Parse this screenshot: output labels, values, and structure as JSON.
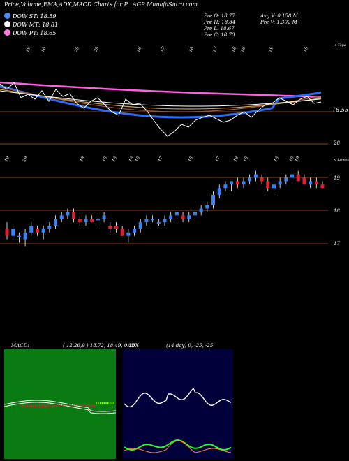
{
  "header": {
    "title_left": "Price,Volume,EMA,ADX,MACD Charts for P",
    "title_right": "AGP MunafaSutra.com",
    "dow": [
      {
        "label": "DOW ST: 18.59",
        "color": "#4f8cf7"
      },
      {
        "label": "DOW MT: 18.81",
        "color": "#ffffff"
      },
      {
        "label": "DOW PT: 18.65",
        "color": "#ff7ae0"
      }
    ],
    "stats_left": [
      "Pre   O: 18.77",
      "Pre   H: 18.84",
      "Pre   L: 18.67",
      "Pre   C: 18.70"
    ],
    "stats_right": [
      "Avg V: 0.158   M",
      "Pre   V: 1.302   M"
    ]
  },
  "panel1": {
    "top_label": "< Topa",
    "price_labels": [
      "18.55",
      "20"
    ],
    "date_labels": [
      "19",
      "16",
      "29",
      "29",
      "18",
      "17",
      "18",
      "17",
      "18",
      "18",
      "19",
      "19"
    ]
  },
  "panel2": {
    "top_label": "< Lowes",
    "price_labels": [
      "19",
      "18",
      "17"
    ],
    "date_labels": [
      "19",
      "29",
      "18",
      "18",
      "16",
      "16",
      "18",
      "17",
      "18",
      "17",
      "18",
      "18",
      "16",
      "19",
      "19"
    ]
  },
  "macd": {
    "label": "MACD:",
    "values": "( 12,26,9 ) 18.72,  18.49,  0.23"
  },
  "adx": {
    "label": "ADX",
    "values": "(14  day) 0,  -25,  -25"
  },
  "chart_data": {
    "type": "candlestick",
    "ohlc": [
      [
        17.5,
        17.7,
        17.2,
        17.3
      ],
      [
        17.3,
        17.6,
        17.2,
        17.5
      ],
      [
        17.3,
        17.4,
        17.1,
        17.3
      ],
      [
        17.2,
        17.5,
        17.0,
        17.4
      ],
      [
        17.4,
        17.7,
        17.3,
        17.6
      ],
      [
        17.5,
        17.6,
        17.3,
        17.4
      ],
      [
        17.4,
        17.6,
        17.2,
        17.5
      ],
      [
        17.5,
        17.7,
        17.4,
        17.6
      ],
      [
        17.6,
        17.9,
        17.5,
        17.8
      ],
      [
        17.8,
        18.0,
        17.7,
        17.9
      ],
      [
        17.9,
        18.1,
        17.8,
        18.0
      ],
      [
        18.0,
        18.1,
        17.7,
        17.8
      ],
      [
        17.8,
        17.9,
        17.6,
        17.7
      ],
      [
        17.7,
        17.9,
        17.6,
        17.8
      ],
      [
        17.8,
        17.9,
        17.7,
        17.7
      ],
      [
        17.8,
        17.9,
        17.6,
        17.8
      ],
      [
        17.8,
        18.0,
        17.7,
        17.9
      ],
      [
        17.6,
        17.7,
        17.4,
        17.5
      ],
      [
        17.6,
        17.7,
        17.4,
        17.5
      ],
      [
        17.5,
        17.6,
        17.3,
        17.3
      ],
      [
        17.3,
        17.5,
        17.1,
        17.4
      ],
      [
        17.4,
        17.6,
        17.3,
        17.5
      ],
      [
        17.5,
        17.8,
        17.4,
        17.7
      ],
      [
        17.7,
        17.9,
        17.6,
        17.8
      ],
      [
        17.8,
        17.9,
        17.7,
        17.8
      ],
      [
        17.7,
        17.8,
        17.6,
        17.7
      ],
      [
        17.7,
        17.9,
        17.6,
        17.8
      ],
      [
        17.8,
        18.0,
        17.7,
        17.9
      ],
      [
        17.9,
        18.1,
        17.8,
        18.0
      ],
      [
        17.9,
        18.0,
        17.7,
        17.8
      ],
      [
        17.8,
        18.0,
        17.7,
        17.9
      ],
      [
        17.9,
        18.1,
        17.8,
        18.0
      ],
      [
        18.0,
        18.2,
        17.9,
        18.1
      ],
      [
        18.1,
        18.3,
        18.0,
        18.2
      ],
      [
        18.2,
        18.6,
        18.1,
        18.5
      ],
      [
        18.5,
        18.8,
        18.4,
        18.7
      ],
      [
        18.7,
        18.9,
        18.6,
        18.8
      ],
      [
        18.8,
        18.9,
        18.6,
        18.9
      ],
      [
        18.9,
        19.0,
        18.7,
        18.8
      ],
      [
        18.8,
        19.0,
        18.7,
        18.9
      ],
      [
        18.9,
        19.1,
        18.8,
        19.0
      ],
      [
        19.0,
        19.2,
        18.9,
        19.1
      ],
      [
        19.0,
        19.1,
        18.8,
        18.9
      ],
      [
        18.9,
        19.0,
        18.6,
        18.7
      ],
      [
        18.7,
        18.9,
        18.6,
        18.8
      ],
      [
        18.8,
        19.0,
        18.7,
        18.9
      ],
      [
        18.9,
        19.1,
        18.8,
        19.0
      ],
      [
        19.0,
        19.2,
        18.9,
        19.1
      ],
      [
        19.1,
        19.2,
        18.9,
        18.9
      ],
      [
        19.0,
        19.1,
        18.8,
        18.8
      ],
      [
        18.8,
        19.0,
        18.7,
        18.9
      ],
      [
        18.9,
        19.0,
        18.7,
        18.8
      ],
      [
        18.8,
        18.9,
        18.7,
        18.7
      ]
    ],
    "ylim": [
      16.6,
      19.5
    ]
  }
}
